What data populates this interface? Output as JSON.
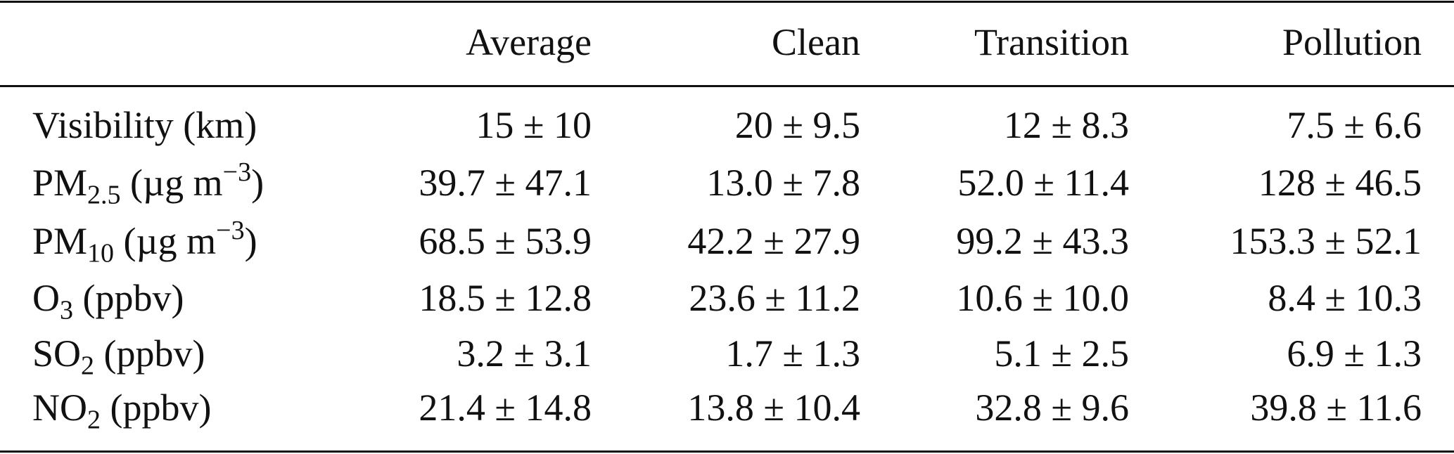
{
  "table": {
    "header": [
      "Average",
      "Clean",
      "Transition",
      "Pollution"
    ],
    "rows": [
      {
        "label": [
          {
            "text": "Visibility (km)"
          }
        ],
        "cells": [
          "15 ± 10",
          "20 ± 9.5",
          "12 ± 8.3",
          "7.5 ± 6.6"
        ]
      },
      {
        "label": [
          {
            "text": "PM"
          },
          {
            "sub": "2.5"
          },
          {
            "text": " (µg m"
          },
          {
            "sup": "−3"
          },
          {
            "text": ")"
          }
        ],
        "cells": [
          "39.7 ± 47.1",
          "13.0 ± 7.8",
          "52.0 ± 11.4",
          "128 ± 46.5"
        ]
      },
      {
        "label": [
          {
            "text": "PM"
          },
          {
            "sub": "10"
          },
          {
            "text": " (µg m"
          },
          {
            "sup": "−3"
          },
          {
            "text": ")"
          }
        ],
        "cells": [
          "68.5 ± 53.9",
          "42.2 ± 27.9",
          "99.2 ± 43.3",
          "153.3 ± 52.1"
        ]
      },
      {
        "label": [
          {
            "text": "O"
          },
          {
            "sub": "3"
          },
          {
            "text": " (ppbv)"
          }
        ],
        "cells": [
          "18.5 ± 12.8",
          "23.6 ± 11.2",
          "10.6 ± 10.0",
          "8.4 ± 10.3"
        ]
      },
      {
        "label": [
          {
            "text": "SO"
          },
          {
            "sub": "2"
          },
          {
            "text": " (ppbv)"
          }
        ],
        "cells": [
          "3.2 ± 3.1",
          "1.7 ± 1.3",
          "5.1 ± 2.5",
          "6.9 ± 1.3"
        ]
      },
      {
        "label": [
          {
            "text": "NO"
          },
          {
            "sub": "2"
          },
          {
            "text": " (ppbv)"
          }
        ],
        "cells": [
          "21.4 ± 14.8",
          "13.8 ± 10.4",
          "32.8 ± 9.6",
          "39.8 ± 11.6"
        ]
      }
    ]
  }
}
